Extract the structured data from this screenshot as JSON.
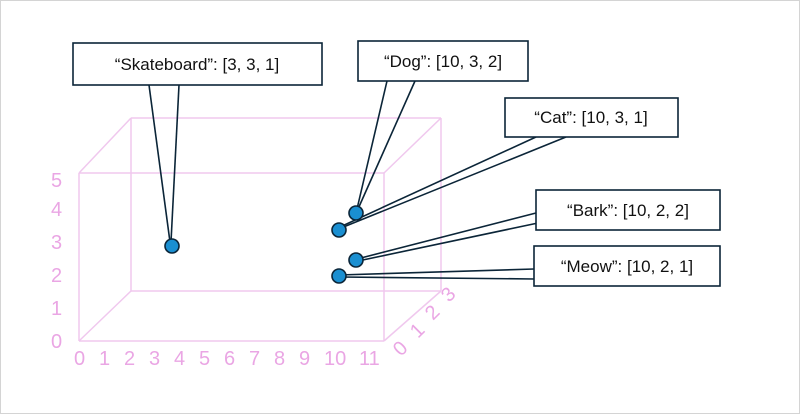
{
  "axes": {
    "x_ticks": [
      "0",
      "1",
      "2",
      "3",
      "4",
      "5",
      "6",
      "7",
      "8",
      "9",
      "10",
      "11"
    ],
    "y_ticks": [
      "0",
      "1",
      "2",
      "3",
      "4",
      "5"
    ],
    "z_ticks": [
      "0",
      "1",
      "2",
      "3"
    ],
    "color": "#eaa6e4"
  },
  "points": [
    {
      "id": "skateboard",
      "label": "“Skateboard”: [3, 3, 1]",
      "coords": [
        3,
        3,
        1
      ]
    },
    {
      "id": "dog",
      "label": "“Dog”: [10, 3, 2]",
      "coords": [
        10,
        3,
        2
      ]
    },
    {
      "id": "cat",
      "label": "“Cat”: [10, 3, 1]",
      "coords": [
        10,
        3,
        1
      ]
    },
    {
      "id": "bark",
      "label": "“Bark”: [10, 2, 2]",
      "coords": [
        10,
        2,
        2
      ]
    },
    {
      "id": "meow",
      "label": "“Meow”: [10, 2, 1]",
      "coords": [
        10,
        2,
        1
      ]
    }
  ],
  "colors": {
    "point_fill": "#1a8fd1",
    "outline": "#0b2538",
    "box": "#f0c8ee"
  }
}
